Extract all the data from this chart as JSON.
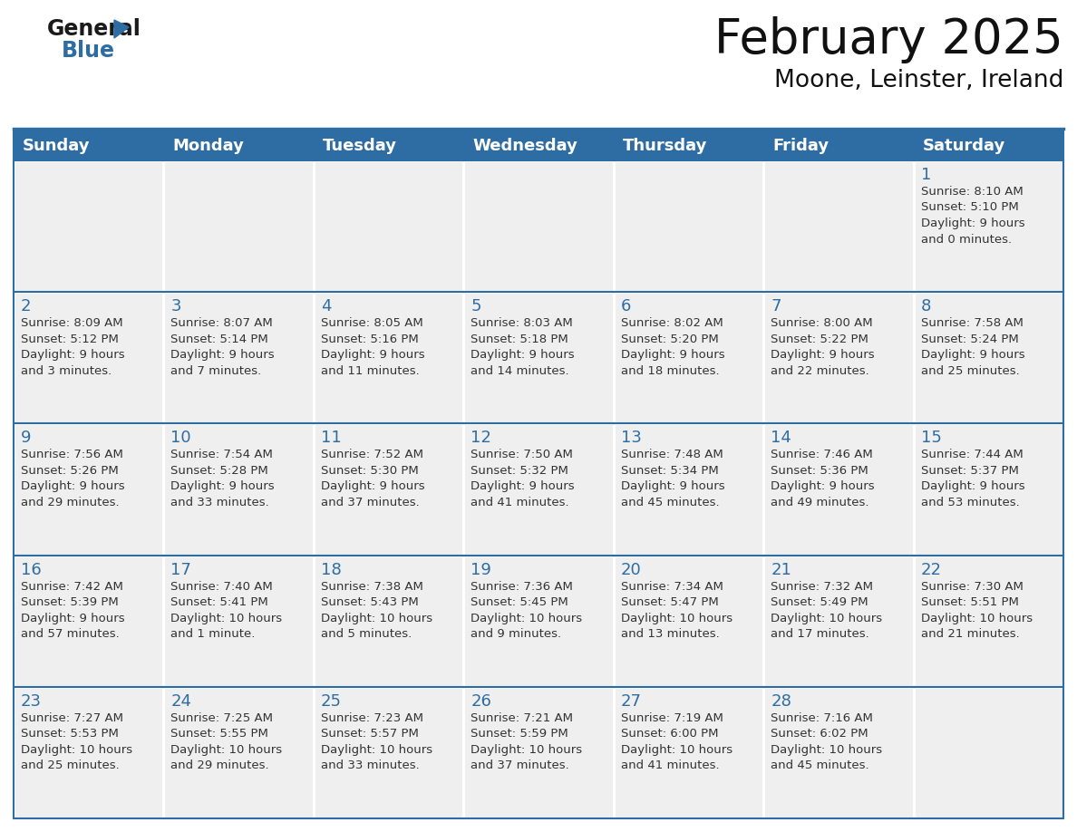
{
  "title": "February 2025",
  "subtitle": "Moone, Leinster, Ireland",
  "header_color": "#2E6DA4",
  "header_text_color": "#FFFFFF",
  "cell_bg_color": "#EFEFEF",
  "cell_border_color": "#2E6DA4",
  "day_number_color": "#2E6DA4",
  "text_color": "#333333",
  "days_of_week": [
    "Sunday",
    "Monday",
    "Tuesday",
    "Wednesday",
    "Thursday",
    "Friday",
    "Saturday"
  ],
  "weeks": [
    [
      {
        "day": null,
        "info": null
      },
      {
        "day": null,
        "info": null
      },
      {
        "day": null,
        "info": null
      },
      {
        "day": null,
        "info": null
      },
      {
        "day": null,
        "info": null
      },
      {
        "day": null,
        "info": null
      },
      {
        "day": 1,
        "info": "Sunrise: 8:10 AM\nSunset: 5:10 PM\nDaylight: 9 hours\nand 0 minutes."
      }
    ],
    [
      {
        "day": 2,
        "info": "Sunrise: 8:09 AM\nSunset: 5:12 PM\nDaylight: 9 hours\nand 3 minutes."
      },
      {
        "day": 3,
        "info": "Sunrise: 8:07 AM\nSunset: 5:14 PM\nDaylight: 9 hours\nand 7 minutes."
      },
      {
        "day": 4,
        "info": "Sunrise: 8:05 AM\nSunset: 5:16 PM\nDaylight: 9 hours\nand 11 minutes."
      },
      {
        "day": 5,
        "info": "Sunrise: 8:03 AM\nSunset: 5:18 PM\nDaylight: 9 hours\nand 14 minutes."
      },
      {
        "day": 6,
        "info": "Sunrise: 8:02 AM\nSunset: 5:20 PM\nDaylight: 9 hours\nand 18 minutes."
      },
      {
        "day": 7,
        "info": "Sunrise: 8:00 AM\nSunset: 5:22 PM\nDaylight: 9 hours\nand 22 minutes."
      },
      {
        "day": 8,
        "info": "Sunrise: 7:58 AM\nSunset: 5:24 PM\nDaylight: 9 hours\nand 25 minutes."
      }
    ],
    [
      {
        "day": 9,
        "info": "Sunrise: 7:56 AM\nSunset: 5:26 PM\nDaylight: 9 hours\nand 29 minutes."
      },
      {
        "day": 10,
        "info": "Sunrise: 7:54 AM\nSunset: 5:28 PM\nDaylight: 9 hours\nand 33 minutes."
      },
      {
        "day": 11,
        "info": "Sunrise: 7:52 AM\nSunset: 5:30 PM\nDaylight: 9 hours\nand 37 minutes."
      },
      {
        "day": 12,
        "info": "Sunrise: 7:50 AM\nSunset: 5:32 PM\nDaylight: 9 hours\nand 41 minutes."
      },
      {
        "day": 13,
        "info": "Sunrise: 7:48 AM\nSunset: 5:34 PM\nDaylight: 9 hours\nand 45 minutes."
      },
      {
        "day": 14,
        "info": "Sunrise: 7:46 AM\nSunset: 5:36 PM\nDaylight: 9 hours\nand 49 minutes."
      },
      {
        "day": 15,
        "info": "Sunrise: 7:44 AM\nSunset: 5:37 PM\nDaylight: 9 hours\nand 53 minutes."
      }
    ],
    [
      {
        "day": 16,
        "info": "Sunrise: 7:42 AM\nSunset: 5:39 PM\nDaylight: 9 hours\nand 57 minutes."
      },
      {
        "day": 17,
        "info": "Sunrise: 7:40 AM\nSunset: 5:41 PM\nDaylight: 10 hours\nand 1 minute."
      },
      {
        "day": 18,
        "info": "Sunrise: 7:38 AM\nSunset: 5:43 PM\nDaylight: 10 hours\nand 5 minutes."
      },
      {
        "day": 19,
        "info": "Sunrise: 7:36 AM\nSunset: 5:45 PM\nDaylight: 10 hours\nand 9 minutes."
      },
      {
        "day": 20,
        "info": "Sunrise: 7:34 AM\nSunset: 5:47 PM\nDaylight: 10 hours\nand 13 minutes."
      },
      {
        "day": 21,
        "info": "Sunrise: 7:32 AM\nSunset: 5:49 PM\nDaylight: 10 hours\nand 17 minutes."
      },
      {
        "day": 22,
        "info": "Sunrise: 7:30 AM\nSunset: 5:51 PM\nDaylight: 10 hours\nand 21 minutes."
      }
    ],
    [
      {
        "day": 23,
        "info": "Sunrise: 7:27 AM\nSunset: 5:53 PM\nDaylight: 10 hours\nand 25 minutes."
      },
      {
        "day": 24,
        "info": "Sunrise: 7:25 AM\nSunset: 5:55 PM\nDaylight: 10 hours\nand 29 minutes."
      },
      {
        "day": 25,
        "info": "Sunrise: 7:23 AM\nSunset: 5:57 PM\nDaylight: 10 hours\nand 33 minutes."
      },
      {
        "day": 26,
        "info": "Sunrise: 7:21 AM\nSunset: 5:59 PM\nDaylight: 10 hours\nand 37 minutes."
      },
      {
        "day": 27,
        "info": "Sunrise: 7:19 AM\nSunset: 6:00 PM\nDaylight: 10 hours\nand 41 minutes."
      },
      {
        "day": 28,
        "info": "Sunrise: 7:16 AM\nSunset: 6:02 PM\nDaylight: 10 hours\nand 45 minutes."
      },
      {
        "day": null,
        "info": null
      }
    ]
  ],
  "title_fontsize": 38,
  "subtitle_fontsize": 19,
  "header_fontsize": 13,
  "day_number_fontsize": 13,
  "cell_text_fontsize": 9.5,
  "logo_general_fontsize": 17,
  "logo_blue_fontsize": 17
}
